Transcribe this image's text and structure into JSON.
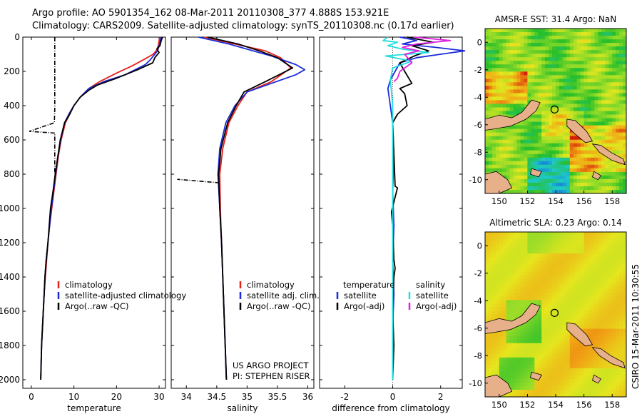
{
  "title": {
    "line1": "Argo profile: AO 5901354_162 08-Mar-2011 20110308_377 4.888S 153.921E",
    "line2": "Climatology: CARS2009. Satellite-adjusted climatology: synTS_20110308.nc (0.17d earlier)"
  },
  "colors": {
    "climatology": "#e8201a",
    "satellite": "#1a2adb",
    "argo": "#000000",
    "satellite_sal": "#20dede",
    "argo_sal": "#e020e0"
  },
  "chart_data": [
    {
      "type": "line",
      "id": "temperature",
      "xlabel": "temperature",
      "xlim": [
        -2,
        31.5
      ],
      "ylim": [
        0,
        2050
      ],
      "xticks": [
        0,
        10,
        20,
        30
      ],
      "yticks": [
        0,
        200,
        400,
        600,
        800,
        1000,
        1200,
        1400,
        1600,
        1800,
        2000
      ],
      "legend": [
        "climatology",
        "satellite-adjusted climatology",
        "Argo(..raw -QC)"
      ],
      "series": [
        {
          "name": "climatology",
          "color": "#e8201a",
          "points": [
            [
              30.2,
              0
            ],
            [
              30.0,
              20
            ],
            [
              29.8,
              50
            ],
            [
              29.3,
              80
            ],
            [
              28.6,
              100
            ],
            [
              26.5,
              130
            ],
            [
              23.5,
              170
            ],
            [
              20.0,
              210
            ],
            [
              16.0,
              260
            ],
            [
              13.5,
              300
            ],
            [
              11.5,
              350
            ],
            [
              10.0,
              400
            ],
            [
              9.0,
              450
            ],
            [
              8.0,
              500
            ],
            [
              7.0,
              600
            ],
            [
              6.3,
              700
            ],
            [
              5.8,
              800
            ],
            [
              5.3,
              900
            ],
            [
              4.8,
              1000
            ],
            [
              4.3,
              1100
            ],
            [
              3.9,
              1200
            ],
            [
              3.6,
              1300
            ],
            [
              3.3,
              1400
            ],
            [
              3.0,
              1500
            ],
            [
              2.8,
              1600
            ],
            [
              2.6,
              1700
            ],
            [
              2.4,
              1800
            ],
            [
              2.3,
              1900
            ],
            [
              2.2,
              2000
            ]
          ]
        },
        {
          "name": "satellite",
          "color": "#1a2adb",
          "points": [
            [
              30.5,
              0
            ],
            [
              30.3,
              20
            ],
            [
              30.0,
              50
            ],
            [
              29.6,
              80
            ],
            [
              29.0,
              100
            ],
            [
              28.0,
              130
            ],
            [
              26.8,
              160
            ],
            [
              22.0,
              220
            ],
            [
              17.0,
              260
            ],
            [
              13.5,
              300
            ],
            [
              11.5,
              350
            ],
            [
              10.0,
              400
            ],
            [
              8.8,
              450
            ],
            [
              7.8,
              500
            ],
            [
              6.9,
              600
            ],
            [
              6.2,
              700
            ],
            [
              5.7,
              800
            ],
            [
              5.2,
              900
            ],
            [
              4.7,
              1000
            ],
            [
              4.3,
              1100
            ],
            [
              3.9,
              1200
            ],
            [
              3.5,
              1300
            ],
            [
              3.2,
              1400
            ],
            [
              3.0,
              1500
            ],
            [
              2.8,
              1600
            ],
            [
              2.6,
              1700
            ],
            [
              2.4,
              1800
            ],
            [
              2.3,
              1900
            ],
            [
              2.2,
              2000
            ]
          ]
        },
        {
          "name": "Argo",
          "color": "#000000",
          "points": [
            [
              30.8,
              0
            ],
            [
              30.5,
              20
            ],
            [
              30.2,
              50
            ],
            [
              29.5,
              70
            ],
            [
              30.0,
              90
            ],
            [
              29.0,
              120
            ],
            [
              28.5,
              150
            ],
            [
              25.0,
              190
            ],
            [
              20.0,
              240
            ],
            [
              15.5,
              280
            ],
            [
              13.5,
              310
            ],
            [
              11.5,
              350
            ],
            [
              10.0,
              400
            ],
            [
              9.0,
              450
            ],
            [
              7.8,
              500
            ],
            [
              6.8,
              600
            ],
            [
              6.2,
              700
            ],
            [
              5.6,
              800
            ],
            [
              5.2,
              880
            ],
            [
              4.8,
              950
            ],
            [
              4.5,
              1000
            ],
            [
              4.2,
              1100
            ],
            [
              3.9,
              1200
            ],
            [
              3.5,
              1300
            ],
            [
              3.2,
              1400
            ],
            [
              3.0,
              1500
            ],
            [
              2.8,
              1600
            ],
            [
              2.6,
              1700
            ],
            [
              2.4,
              1800
            ],
            [
              2.3,
              1900
            ],
            [
              2.2,
              2000
            ]
          ]
        }
      ],
      "raw": {
        "name": "Argo raw",
        "points": [
          [
            5.5,
            0
          ],
          [
            5.5,
            420
          ],
          [
            5.4,
            500
          ],
          [
            -0.5,
            550
          ],
          [
            5.5,
            560
          ],
          [
            5.5,
            800
          ]
        ]
      }
    },
    {
      "type": "line",
      "id": "salinity",
      "xlabel": "salinity",
      "xlim": [
        33.75,
        36.1
      ],
      "ylim": [
        0,
        2050
      ],
      "xticks": [
        34,
        34.5,
        35,
        35.5,
        36
      ],
      "legend": [
        "climatology",
        "satellite adj. clim.",
        "Argo(..raw -QC)"
      ],
      "annotation": [
        "US ARGO PROJECT",
        "PI: STEPHEN RISER"
      ],
      "series": [
        {
          "name": "climatology",
          "color": "#e8201a",
          "points": [
            [
              34.3,
              0
            ],
            [
              34.8,
              40
            ],
            [
              35.3,
              80
            ],
            [
              35.55,
              120
            ],
            [
              35.72,
              180
            ],
            [
              35.4,
              260
            ],
            [
              35.0,
              320
            ],
            [
              34.85,
              400
            ],
            [
              34.7,
              500
            ],
            [
              34.6,
              650
            ],
            [
              34.55,
              800
            ],
            [
              34.56,
              1000
            ],
            [
              34.58,
              1200
            ],
            [
              34.6,
              1400
            ],
            [
              34.62,
              1600
            ],
            [
              34.64,
              1800
            ],
            [
              34.66,
              2000
            ]
          ]
        },
        {
          "name": "satellite",
          "color": "#1a2adb",
          "points": [
            [
              34.2,
              0
            ],
            [
              34.7,
              40
            ],
            [
              35.1,
              80
            ],
            [
              35.4,
              110
            ],
            [
              35.8,
              160
            ],
            [
              35.95,
              190
            ],
            [
              35.8,
              220
            ],
            [
              35.4,
              270
            ],
            [
              35.0,
              320
            ],
            [
              34.8,
              400
            ],
            [
              34.65,
              500
            ],
            [
              34.55,
              650
            ],
            [
              34.52,
              800
            ],
            [
              34.55,
              1000
            ],
            [
              34.58,
              1200
            ],
            [
              34.6,
              1400
            ],
            [
              34.62,
              1600
            ],
            [
              34.64,
              1800
            ],
            [
              34.66,
              2000
            ]
          ]
        },
        {
          "name": "Argo",
          "color": "#000000",
          "points": [
            [
              34.35,
              0
            ],
            [
              34.85,
              40
            ],
            [
              35.2,
              80
            ],
            [
              35.5,
              120
            ],
            [
              35.75,
              180
            ],
            [
              35.3,
              260
            ],
            [
              34.95,
              320
            ],
            [
              34.82,
              400
            ],
            [
              34.68,
              500
            ],
            [
              34.57,
              650
            ],
            [
              34.53,
              800
            ],
            [
              34.55,
              1000
            ],
            [
              34.58,
              1200
            ],
            [
              34.6,
              1400
            ],
            [
              34.62,
              1600
            ],
            [
              34.64,
              1800
            ],
            [
              34.66,
              2000
            ]
          ]
        }
      ],
      "raw": {
        "name": "Argo raw",
        "points": [
          [
            34.52,
            800
          ],
          [
            34.53,
            850
          ],
          [
            33.85,
            830
          ]
        ]
      }
    },
    {
      "type": "line",
      "id": "difference",
      "xlabel": "difference from climatology",
      "xlim": [
        -3.05,
        2.9
      ],
      "ylim": [
        0,
        2050
      ],
      "xticks": [
        -2,
        0,
        2
      ],
      "legend_headers": [
        "temperature",
        "salinity"
      ],
      "legend": [
        [
          "satellite",
          "Argo(-adj)"
        ],
        [
          "satellite",
          "Argo(-adj)"
        ]
      ],
      "series": [
        {
          "name": "temperature satellite",
          "color": "#1a2adb",
          "points": [
            [
              0.3,
              0
            ],
            [
              1.0,
              20
            ],
            [
              0.4,
              40
            ],
            [
              1.8,
              60
            ],
            [
              3.0,
              80
            ],
            [
              2.0,
              100
            ],
            [
              1.0,
              120
            ],
            [
              0.3,
              150
            ],
            [
              0.1,
              200
            ],
            [
              -0.1,
              250
            ],
            [
              -0.2,
              300
            ],
            [
              -0.1,
              400
            ],
            [
              0.0,
              500
            ],
            [
              0.05,
              700
            ],
            [
              0.0,
              900
            ],
            [
              0.05,
              1100
            ],
            [
              0.0,
              1300
            ],
            [
              0.05,
              1500
            ],
            [
              0.0,
              1700
            ],
            [
              0.0,
              2000
            ]
          ]
        },
        {
          "name": "temperature Argo",
          "color": "#000000",
          "points": [
            [
              0.6,
              0
            ],
            [
              1.7,
              30
            ],
            [
              0.8,
              50
            ],
            [
              1.5,
              80
            ],
            [
              0.9,
              110
            ],
            [
              0.3,
              150
            ],
            [
              0.5,
              200
            ],
            [
              0.8,
              270
            ],
            [
              0.3,
              300
            ],
            [
              0.5,
              330
            ],
            [
              0.6,
              400
            ],
            [
              0.2,
              450
            ],
            [
              0.0,
              500
            ],
            [
              0.1,
              870
            ],
            [
              0.2,
              880
            ],
            [
              0.0,
              990
            ],
            [
              -0.05,
              1020
            ],
            [
              0.0,
              1100
            ],
            [
              0.05,
              1300
            ],
            [
              0.1,
              1350
            ],
            [
              0.05,
              1400
            ],
            [
              0.0,
              1600
            ],
            [
              0.05,
              1800
            ],
            [
              0.0,
              2000
            ]
          ]
        },
        {
          "name": "salinity satellite",
          "color": "#20dede",
          "points": [
            [
              -0.2,
              0
            ],
            [
              -0.4,
              20
            ],
            [
              0.2,
              30
            ],
            [
              -0.2,
              50
            ],
            [
              0.4,
              70
            ],
            [
              1.5,
              90
            ],
            [
              -0.3,
              110
            ],
            [
              0.8,
              140
            ],
            [
              0.0,
              180
            ],
            [
              -0.1,
              250
            ],
            [
              0.0,
              400
            ],
            [
              0.0,
              700
            ],
            [
              0.0,
              1000
            ],
            [
              0.0,
              1500
            ],
            [
              0.0,
              2000
            ]
          ]
        },
        {
          "name": "salinity Argo",
          "color": "#e020e0",
          "points": [
            [
              0.9,
              0
            ],
            [
              2.4,
              20
            ],
            [
              1.0,
              40
            ],
            [
              0.4,
              60
            ],
            [
              1.1,
              80
            ],
            [
              0.5,
              100
            ],
            [
              0.8,
              150
            ],
            [
              0.3,
              200
            ],
            [
              0.2,
              240
            ],
            [
              0.05,
              260
            ]
          ]
        }
      ]
    },
    {
      "type": "heatmap",
      "id": "sst_map",
      "title": "AMSR-E SST: 31.4 Argo: NaN",
      "xlim": [
        149,
        159
      ],
      "ylim": [
        -11,
        1
      ],
      "xticks": [
        150,
        152,
        154,
        156,
        158
      ],
      "yticks": [
        0,
        -2,
        -4,
        -6,
        -8,
        -10
      ],
      "marker": [
        153.921,
        -4.888
      ]
    },
    {
      "type": "heatmap",
      "id": "sla_map",
      "title": "Altimetric SLA: 0.23 Argo: 0.14",
      "xlim": [
        149,
        159
      ],
      "ylim": [
        -11,
        1
      ],
      "xticks": [
        150,
        152,
        154,
        156,
        158
      ],
      "yticks": [
        0,
        -2,
        -4,
        -6,
        -8,
        -10
      ],
      "marker": [
        153.921,
        -4.888
      ]
    }
  ],
  "credit": "CSIRO 15-Mar-2011 10:30:55"
}
